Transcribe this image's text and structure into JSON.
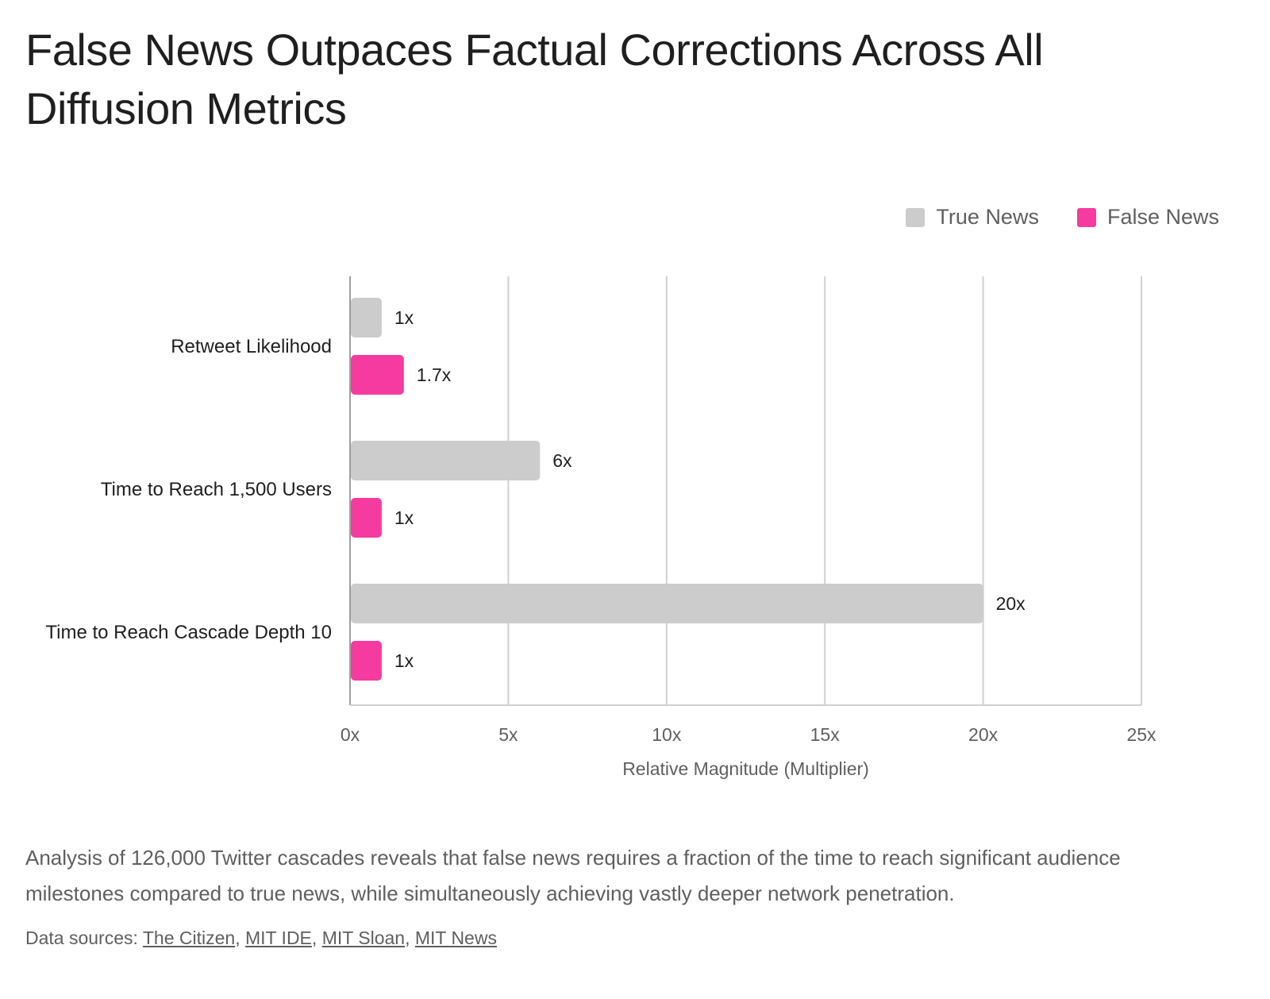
{
  "title": "False News Outpaces Factual Corrections Across All Diffusion Metrics",
  "legend": {
    "items": [
      {
        "label": "True News",
        "color": "#cccccc"
      },
      {
        "label": "False News",
        "color": "#f53ba0"
      }
    ]
  },
  "chart_data": {
    "type": "bar",
    "orientation": "horizontal",
    "categories": [
      "Retweet Likelihood",
      "Time to Reach 1,500 Users",
      "Time to Reach Cascade Depth 10"
    ],
    "series": [
      {
        "name": "True News",
        "color": "#cccccc",
        "values": [
          1,
          6,
          20
        ],
        "labels": [
          "1x",
          "6x",
          "20x"
        ]
      },
      {
        "name": "False News",
        "color": "#f53ba0",
        "values": [
          1.7,
          1,
          1
        ],
        "labels": [
          "1.7x",
          "1x",
          "1x"
        ]
      }
    ],
    "xlabel": "Relative Magnitude (Multiplier)",
    "xlim": [
      0,
      25
    ],
    "xticks": [
      0,
      5,
      10,
      15,
      20,
      25
    ],
    "xtick_labels": [
      "0x",
      "5x",
      "10x",
      "15x",
      "20x",
      "25x"
    ],
    "grid": true,
    "legend_position": "top-right"
  },
  "caption": "Analysis of 126,000 Twitter cascades reveals that false news requires a fraction of the time to reach significant audience milestones compared to true news, while simultaneously achieving vastly deeper network penetration.",
  "sources": {
    "prefix": "Data sources: ",
    "links": [
      "The Citizen",
      "MIT IDE",
      "MIT Sloan",
      "MIT News"
    ]
  }
}
